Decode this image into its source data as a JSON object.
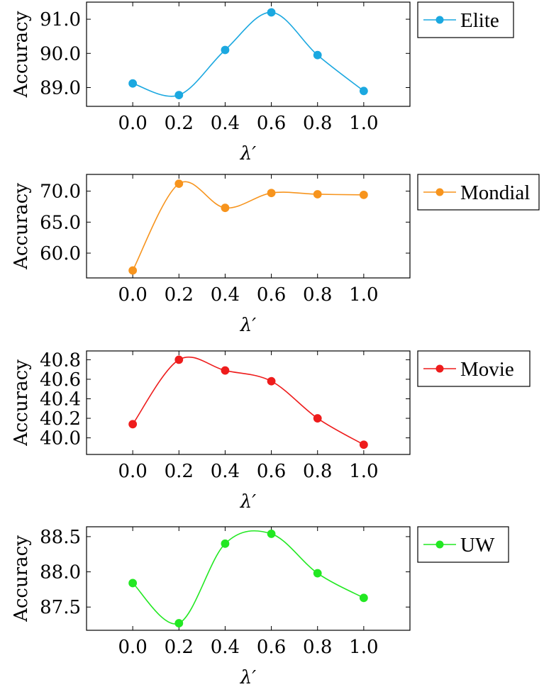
{
  "chart_data": [
    {
      "type": "line",
      "title": "",
      "xlabel": "λ′",
      "ylabel": "Accuracy",
      "x": [
        0.0,
        0.2,
        0.4,
        0.6,
        0.8,
        1.0
      ],
      "x_tick_labels": [
        "0.0",
        "0.2",
        "0.4",
        "0.6",
        "0.8",
        "1.0"
      ],
      "xlim": [
        -0.2,
        1.2
      ],
      "ylim": [
        88.45,
        91.5
      ],
      "y_ticks": [
        89.0,
        90.0,
        91.0
      ],
      "y_tick_labels": [
        "89.0",
        "90.0",
        "91.0"
      ],
      "grid": false,
      "legend": "outside-right",
      "smooth": true,
      "series": [
        {
          "name": "Elite",
          "color": "#1ba8e0",
          "values": [
            89.12,
            88.78,
            90.1,
            91.2,
            89.95,
            88.9
          ]
        }
      ]
    },
    {
      "type": "line",
      "title": "",
      "xlabel": "λ′",
      "ylabel": "Accuracy",
      "x": [
        0.0,
        0.2,
        0.4,
        0.6,
        0.8,
        1.0
      ],
      "x_tick_labels": [
        "0.0",
        "0.2",
        "0.4",
        "0.6",
        "0.8",
        "1.0"
      ],
      "xlim": [
        -0.2,
        1.2
      ],
      "ylim": [
        56.0,
        72.7
      ],
      "y_ticks": [
        60.0,
        65.0,
        70.0
      ],
      "y_tick_labels": [
        "60.0",
        "65.0",
        "70.0"
      ],
      "grid": false,
      "legend": "outside-right",
      "smooth": true,
      "series": [
        {
          "name": "Mondial",
          "color": "#f7941d",
          "values": [
            57.2,
            71.2,
            67.3,
            69.7,
            69.5,
            69.4
          ]
        }
      ]
    },
    {
      "type": "line",
      "title": "",
      "xlabel": "λ′",
      "ylabel": "Accuracy",
      "x": [
        0.0,
        0.2,
        0.4,
        0.6,
        0.8,
        1.0
      ],
      "x_tick_labels": [
        "0.0",
        "0.2",
        "0.4",
        "0.6",
        "0.8",
        "1.0"
      ],
      "xlim": [
        -0.2,
        1.2
      ],
      "ylim": [
        39.83,
        40.89
      ],
      "y_ticks": [
        40.0,
        40.2,
        40.4,
        40.6,
        40.8
      ],
      "y_tick_labels": [
        "40.0",
        "40.2",
        "40.4",
        "40.6",
        "40.8"
      ],
      "grid": false,
      "legend": "outside-right",
      "smooth": true,
      "series": [
        {
          "name": "Movie",
          "color": "#ee1c1c",
          "values": [
            40.14,
            40.8,
            40.69,
            40.58,
            40.2,
            39.93
          ]
        }
      ]
    },
    {
      "type": "line",
      "title": "",
      "xlabel": "λ′",
      "ylabel": "Accuracy",
      "x": [
        0.0,
        0.2,
        0.4,
        0.6,
        0.8,
        1.0
      ],
      "x_tick_labels": [
        "0.0",
        "0.2",
        "0.4",
        "0.6",
        "0.8",
        "1.0"
      ],
      "xlim": [
        -0.2,
        1.2
      ],
      "ylim": [
        87.17,
        88.64
      ],
      "y_ticks": [
        87.5,
        88.0,
        88.5
      ],
      "y_tick_labels": [
        "87.5",
        "88.0",
        "88.5"
      ],
      "grid": false,
      "legend": "outside-right",
      "smooth": true,
      "series": [
        {
          "name": "UW",
          "color": "#22e822",
          "values": [
            87.84,
            87.27,
            88.4,
            88.54,
            87.98,
            87.63
          ]
        }
      ]
    }
  ]
}
